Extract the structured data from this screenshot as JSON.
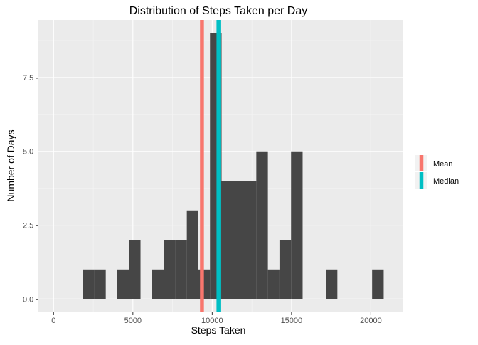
{
  "chart_data": {
    "type": "bar",
    "title": "Distribution of Steps Taken per Day",
    "xlabel": "Steps Taken",
    "ylabel": "Number of Days",
    "xlim": [
      -1000,
      22000
    ],
    "ylim": [
      -0.45,
      9.45
    ],
    "x_ticks": [
      0,
      5000,
      10000,
      15000,
      20000
    ],
    "x_tick_labels": [
      "0",
      "5000",
      "10000",
      "15000",
      "20000"
    ],
    "y_ticks": [
      0,
      2.5,
      5,
      7.5
    ],
    "y_tick_labels": [
      "0.0 -",
      "2.5 -",
      "5.0 -",
      "7.5 -"
    ],
    "grid": true,
    "legend_position": "right",
    "bin_width": 730,
    "bins": [
      {
        "x_start": 1830,
        "x_end": 2560,
        "count": 1
      },
      {
        "x_start": 2560,
        "x_end": 3290,
        "count": 1
      },
      {
        "x_start": 4020,
        "x_end": 4750,
        "count": 1
      },
      {
        "x_start": 4750,
        "x_end": 5480,
        "count": 2
      },
      {
        "x_start": 6210,
        "x_end": 6940,
        "count": 1
      },
      {
        "x_start": 6940,
        "x_end": 7670,
        "count": 2
      },
      {
        "x_start": 7670,
        "x_end": 8400,
        "count": 2
      },
      {
        "x_start": 8400,
        "x_end": 9130,
        "count": 3
      },
      {
        "x_start": 9130,
        "x_end": 9860,
        "count": 1
      },
      {
        "x_start": 9860,
        "x_end": 10590,
        "count": 9
      },
      {
        "x_start": 10590,
        "x_end": 11320,
        "count": 4
      },
      {
        "x_start": 11320,
        "x_end": 12050,
        "count": 4
      },
      {
        "x_start": 12050,
        "x_end": 12780,
        "count": 4
      },
      {
        "x_start": 12780,
        "x_end": 13510,
        "count": 5
      },
      {
        "x_start": 13510,
        "x_end": 14240,
        "count": 1
      },
      {
        "x_start": 14240,
        "x_end": 14970,
        "count": 2
      },
      {
        "x_start": 14970,
        "x_end": 15700,
        "count": 5
      },
      {
        "x_start": 17160,
        "x_end": 17890,
        "count": 1
      },
      {
        "x_start": 20080,
        "x_end": 20810,
        "count": 1
      }
    ],
    "vlines": [
      {
        "name": "Mean",
        "x": 9354,
        "color": "#F8766D"
      },
      {
        "name": "Median",
        "x": 10395,
        "color": "#00BFC4"
      }
    ],
    "bar_color": "#464646",
    "panel_color": "#EBEBEB"
  }
}
